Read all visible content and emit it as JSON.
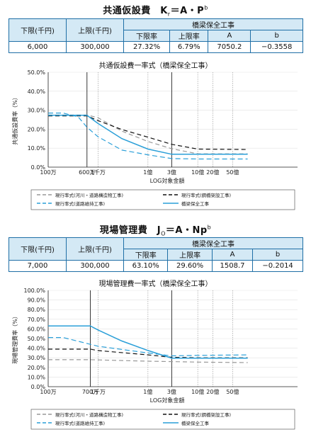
{
  "section1": {
    "title_main": "共通仮設費　K",
    "title_sub": "r",
    "title_mid": "＝A・P",
    "title_sup": "b",
    "table": {
      "lower_label": "下限(千円)",
      "upper_label": "上限(千円)",
      "group_label": "橋梁保全工事",
      "col_labels": [
        "下限率",
        "上限率",
        "A",
        "b"
      ],
      "values": [
        "6,000",
        "300,000",
        "27.32%",
        "6.79%",
        "7050.2",
        "−0.3558"
      ]
    },
    "chart_title": "共通仮設費一率式（橋梁保全工事）"
  },
  "section2": {
    "title_main": "現場管理費　J",
    "title_sub": "O",
    "title_mid": "＝A・Np",
    "title_sup": "b",
    "table": {
      "lower_label": "下限(千円)",
      "upper_label": "上限(千円)",
      "group_label": "橋梁保全工事",
      "col_labels": [
        "下限率",
        "上限率",
        "A",
        "b"
      ],
      "values": [
        "7,000",
        "300,000",
        "63.10%",
        "29.60%",
        "1508.7",
        "−0.2014"
      ]
    },
    "chart_title": "現場管理費一率式（橋梁保全工事）"
  },
  "chart_data": [
    {
      "type": "line",
      "title": "共通仮設費一率式（橋梁保全工事）",
      "xlabel": "LOG対象金額",
      "ylabel": "共通仮設費率（%）",
      "x_scale": "log",
      "x_unit": "千円",
      "xlim": [
        1000,
        100000000
      ],
      "ylim": [
        0,
        50
      ],
      "y_ticks": [
        "0.0%",
        "10.0%",
        "20.0%",
        "30.0%",
        "40.0%",
        "50.0%"
      ],
      "x_tick_labels": [
        {
          "value": 1000,
          "label": "100万"
        },
        {
          "value": 6000,
          "label": "600万"
        },
        {
          "value": 10000,
          "label": "1千万"
        },
        {
          "value": 100000,
          "label": "1億"
        },
        {
          "value": 300000,
          "label": "3億"
        },
        {
          "value": 1000000,
          "label": "10億"
        },
        {
          "value": 2000000,
          "label": "20億"
        },
        {
          "value": 5000000,
          "label": "50億"
        }
      ],
      "solid_vlines": [
        6000,
        300000
      ],
      "dotted_vlines": [
        10000,
        100000,
        1000000,
        2000000,
        5000000
      ],
      "series": [
        {
          "name": "現行率式(河川・道路構造物工事)",
          "color": "#999999",
          "dash": "6,4",
          "x": [
            1000,
            6000,
            10000,
            30000,
            100000,
            300000,
            1000000,
            10000000
          ],
          "y": [
            27.5,
            27.5,
            26.0,
            19.0,
            13.5,
            9.7,
            7.0,
            7.0
          ]
        },
        {
          "name": "現行率式(鋼橋架設工事)",
          "color": "#111111",
          "dash": "6,4",
          "x": [
            1000,
            6000,
            10000,
            30000,
            100000,
            300000,
            1000000,
            10000000
          ],
          "y": [
            27.0,
            27.0,
            24.5,
            19.8,
            15.8,
            12.0,
            9.5,
            9.3
          ]
        },
        {
          "name": "現行率式(道路維持工事)",
          "color": "#2a9fd8",
          "dash": "7,4",
          "x": [
            1000,
            2000,
            4000,
            6000,
            10000,
            30000,
            100000,
            300000,
            1000000,
            10000000
          ],
          "y": [
            28.5,
            28.5,
            26.5,
            21.0,
            16.0,
            9.0,
            6.5,
            4.5,
            4.3,
            4.3
          ]
        },
        {
          "name": "橋梁保全工事",
          "color": "#2a9fd8",
          "dash": "",
          "x": [
            1000,
            6000,
            10000,
            30000,
            100000,
            300000,
            10000000
          ],
          "y": [
            27.32,
            27.32,
            22.97,
            15.04,
            9.53,
            6.79,
            6.79
          ]
        }
      ]
    },
    {
      "type": "line",
      "title": "現場管理費一率式（橋梁保全工事）",
      "xlabel": "LOG対象金額",
      "ylabel": "現場管理費率（%）",
      "x_scale": "log",
      "x_unit": "千円",
      "xlim": [
        1000,
        100000000
      ],
      "ylim": [
        0,
        100
      ],
      "y_ticks": [
        "0.0%",
        "10.0%",
        "20.0%",
        "30.0%",
        "40.0%",
        "50.0%",
        "60.0%",
        "70.0%",
        "80.0%",
        "90.0%",
        "100.0%"
      ],
      "x_tick_labels": [
        {
          "value": 1000,
          "label": "100万"
        },
        {
          "value": 7000,
          "label": "700万"
        },
        {
          "value": 10000,
          "label": "1千万"
        },
        {
          "value": 100000,
          "label": "1億"
        },
        {
          "value": 300000,
          "label": "3億"
        },
        {
          "value": 1000000,
          "label": "10億"
        },
        {
          "value": 2000000,
          "label": "20億"
        },
        {
          "value": 5000000,
          "label": "50億"
        }
      ],
      "solid_vlines": [
        7000,
        300000
      ],
      "dotted_vlines": [
        10000,
        100000,
        1000000,
        2000000,
        5000000
      ],
      "series": [
        {
          "name": "現行率式(河川・道路構造物工事)",
          "color": "#999999",
          "dash": "6,4",
          "x": [
            1000,
            7000,
            10000,
            100000,
            300000,
            1000000,
            10000000
          ],
          "y": [
            28.0,
            28.0,
            27.8,
            26.5,
            26.0,
            25.5,
            25.0
          ]
        },
        {
          "name": "現行率式(鋼橋架設工事)",
          "color": "#111111",
          "dash": "6,4",
          "x": [
            1000,
            7000,
            10000,
            100000,
            300000,
            1000000,
            10000000
          ],
          "y": [
            39.0,
            39.0,
            37.5,
            33.0,
            30.5,
            30.0,
            30.0
          ]
        },
        {
          "name": "現行率式(道路維持工事)",
          "color": "#2a9fd8",
          "dash": "7,4",
          "x": [
            1000,
            2000,
            7000,
            10000,
            100000,
            300000,
            1000000,
            10000000
          ],
          "y": [
            51.0,
            51.0,
            44.0,
            42.0,
            35.0,
            32.0,
            32.5,
            33.0
          ]
        },
        {
          "name": "橋梁保全工事",
          "color": "#2a9fd8",
          "dash": "",
          "x": [
            1000,
            7000,
            10000,
            30000,
            100000,
            300000,
            10000000
          ],
          "y": [
            63.1,
            63.1,
            58.9,
            47.4,
            37.6,
            29.6,
            29.6
          ]
        }
      ]
    }
  ]
}
